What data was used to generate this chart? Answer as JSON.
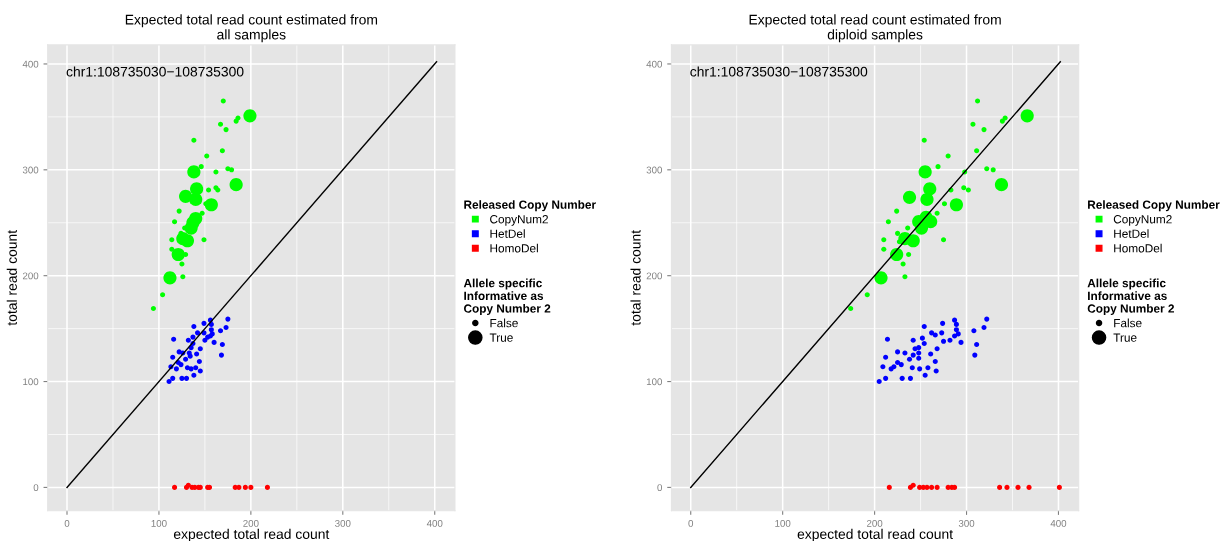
{
  "chart_data": [
    {
      "type": "bubble",
      "title": "Expected total read count estimated from\nall samples",
      "xlabel": "expected total read count",
      "ylabel": "total read count",
      "legend_title": [
        "Released Copy Number",
        "Allele specific\nInformative as\nCopy Number 2"
      ],
      "annotations": [
        "chr1:108735030−108735300"
      ],
      "xlim": [
        -21,
        422
      ],
      "ylim": [
        -22,
        418
      ],
      "xticks": [
        0,
        100,
        200,
        300,
        400
      ],
      "yticks": [
        0,
        100,
        200,
        300,
        400
      ],
      "grid": true,
      "legend": "right",
      "marker": "circle",
      "size_legend": [
        {
          "value": 0.15,
          "label": "False"
        },
        {
          "value": 1,
          "label": "True"
        }
      ],
      "series": [
        {
          "name": "CopyNum2",
          "color": "#00ff00",
          "x": [
            170,
            199,
            186,
            184,
            167,
            173,
            138,
            169,
            152,
            146,
            138,
            162,
            175,
            179,
            184,
            141,
            162,
            164,
            154,
            129,
            140,
            157,
            151,
            122,
            147,
            117,
            140,
            137,
            135,
            128,
            124,
            126,
            131,
            114,
            149,
            114,
            121,
            129,
            125,
            112,
            126,
            104,
            94
          ],
          "values": [
            365,
            351,
            349,
            346,
            343,
            338,
            328,
            318,
            313,
            303,
            298,
            298,
            301,
            300,
            286,
            282,
            283,
            281,
            281,
            275,
            272,
            267,
            268,
            261,
            259,
            251,
            254,
            250,
            245,
            245,
            240,
            235,
            233,
            234,
            234,
            225,
            220,
            220,
            211,
            198,
            199,
            182,
            169
          ],
          "sizes": [
            0.15,
            1,
            0.15,
            0.15,
            0.15,
            0.15,
            0.15,
            0.15,
            0.15,
            0.15,
            1,
            0.15,
            0.15,
            0.15,
            1,
            1,
            0.15,
            0.15,
            0.15,
            1,
            1,
            1,
            0.15,
            0.15,
            0.15,
            0.15,
            1,
            1,
            1,
            0.15,
            0.15,
            1,
            1,
            0.15,
            0.15,
            0.15,
            1,
            0.15,
            0.15,
            1,
            0.15,
            0.15,
            0.15
          ]
        },
        {
          "name": "HetDel",
          "color": "#0000ff",
          "x": [
            175,
            156,
            149,
            157,
            138,
            173,
            157,
            142,
            149,
            158,
            156,
            137,
            153,
            167,
            116,
            132,
            150,
            160,
            169,
            137,
            135,
            145,
            122,
            126,
            133,
            141,
            134,
            129,
            115,
            168,
            144,
            121,
            124,
            113,
            119,
            131,
            135,
            140,
            145,
            138,
            115,
            125,
            130,
            111
          ],
          "values": [
            159,
            158,
            155,
            154,
            152,
            151,
            149,
            146,
            146,
            145,
            143,
            142,
            142,
            148,
            140,
            139,
            139,
            137,
            135,
            136,
            132,
            131,
            128,
            127,
            127,
            126,
            124,
            121,
            123,
            125,
            119,
            118,
            116,
            114,
            112,
            113,
            112,
            113,
            110,
            106,
            103,
            103,
            103,
            100
          ],
          "sizes": [
            0.15,
            0.15,
            0.15,
            0.15,
            0.15,
            0.15,
            0.15,
            0.15,
            0.15,
            0.15,
            0.15,
            0.15,
            0.15,
            0.15,
            0.15,
            0.15,
            0.15,
            0.15,
            0.15,
            0.15,
            0.15,
            0.15,
            0.15,
            0.15,
            0.15,
            0.15,
            0.15,
            0.15,
            0.15,
            0.15,
            0.15,
            0.15,
            0.15,
            0.15,
            0.15,
            0.15,
            0.15,
            0.15,
            0.15,
            0.15,
            0.15,
            0.15,
            0.15,
            0.15
          ]
        },
        {
          "name": "HomoDel",
          "color": "#ff0000",
          "x": [
            117,
            130,
            132,
            136,
            139,
            143,
            145,
            153,
            155,
            183,
            187,
            194,
            200,
            218
          ],
          "values": [
            0,
            0,
            2,
            0,
            0,
            0,
            0,
            0,
            0,
            0,
            0,
            0,
            0,
            0
          ],
          "sizes": [
            0.15,
            0.15,
            0.15,
            0.15,
            0.15,
            0.15,
            0.15,
            0.15,
            0.15,
            0.15,
            0.15,
            0.15,
            0.15,
            0.15
          ]
        },
        {
          "type": "line",
          "marker": "none",
          "color": "#000000",
          "x": [
            0,
            402
          ],
          "values": [
            0,
            402
          ]
        }
      ]
    },
    {
      "type": "bubble",
      "title": "Expected total read count estimated from\ndiploid samples",
      "xlabel": "expected total read count",
      "ylabel": "total read count",
      "legend_title": [
        "Released Copy Number",
        "Allele specific\nInformative as\nCopy Number 2"
      ],
      "annotations": [
        "chr1:108735030−108735300"
      ],
      "xlim": [
        -21,
        422
      ],
      "ylim": [
        -22,
        418
      ],
      "xticks": [
        0,
        100,
        200,
        300,
        400
      ],
      "yticks": [
        0,
        100,
        200,
        300,
        400
      ],
      "grid": true,
      "legend": "right",
      "marker": "circle",
      "size_legend": [
        {
          "value": 0.15,
          "label": "False"
        },
        {
          "value": 1,
          "label": "True"
        }
      ],
      "series": [
        {
          "name": "CopyNum2",
          "color": "#00ff00",
          "x": [
            312,
            366,
            342,
            339,
            307,
            319,
            254,
            311,
            280,
            269,
            255,
            298,
            322,
            329,
            338,
            260,
            297,
            302,
            283,
            238,
            257,
            289,
            276,
            224,
            215,
            248,
            256,
            261,
            251,
            233,
            242,
            224,
            207,
            268,
            236,
            225,
            210,
            275,
            227,
            210,
            237,
            231,
            233,
            192,
            174
          ],
          "values": [
            365,
            351,
            349,
            346,
            343,
            338,
            328,
            318,
            313,
            303,
            298,
            298,
            301,
            300,
            286,
            282,
            283,
            281,
            281,
            274,
            272,
            267,
            268,
            261,
            251,
            251,
            255,
            251,
            245,
            235,
            233,
            220,
            198,
            259,
            245,
            240,
            234,
            234,
            232,
            225,
            220,
            211,
            199,
            182,
            169
          ],
          "sizes": [
            0.15,
            1,
            0.15,
            0.15,
            0.15,
            0.15,
            0.15,
            0.15,
            0.15,
            0.15,
            1,
            0.15,
            0.15,
            0.15,
            1,
            1,
            0.15,
            0.15,
            0.15,
            1,
            1,
            1,
            0.15,
            0.15,
            0.15,
            1,
            1,
            1,
            1,
            1,
            1,
            1,
            1,
            0.15,
            0.15,
            0.15,
            0.15,
            0.15,
            0.15,
            0.15,
            0.15,
            0.15,
            0.15,
            0.15,
            0.15
          ]
        },
        {
          "name": "HetDel",
          "color": "#0000ff",
          "x": [
            322,
            287,
            274,
            289,
            254,
            319,
            289,
            262,
            273,
            291,
            266,
            308,
            287,
            282,
            275,
            294,
            214,
            242,
            252,
            254,
            311,
            248,
            268,
            244,
            225,
            233,
            248,
            261,
            242,
            309,
            238,
            212,
            248,
            266,
            225,
            229,
            209,
            221,
            218,
            241,
            249,
            258,
            267,
            255,
            212,
            230,
            239,
            205
          ],
          "values": [
            159,
            158,
            155,
            154,
            152,
            151,
            149,
            146,
            146,
            145,
            144,
            148,
            143,
            139,
            138,
            137,
            140,
            139,
            141,
            136,
            135,
            132,
            131,
            131,
            128,
            127,
            127,
            126,
            125,
            125,
            121,
            123,
            122,
            119,
            118,
            116,
            114,
            114,
            112,
            113,
            112,
            113,
            110,
            106,
            103,
            103,
            103,
            100
          ],
          "sizes": [
            0.15,
            0.15,
            0.15,
            0.15,
            0.15,
            0.15,
            0.15,
            0.15,
            0.15,
            0.15,
            0.15,
            0.15,
            0.15,
            0.15,
            0.15,
            0.15,
            0.15,
            0.15,
            0.15,
            0.15,
            0.15,
            0.15,
            0.15,
            0.15,
            0.15,
            0.15,
            0.15,
            0.15,
            0.15,
            0.15,
            0.15,
            0.15,
            0.15,
            0.15,
            0.15,
            0.15,
            0.15,
            0.15,
            0.15,
            0.15,
            0.15,
            0.15,
            0.15,
            0.15,
            0.15,
            0.15,
            0.15,
            0.15
          ]
        },
        {
          "name": "HomoDel",
          "color": "#ff0000",
          "x": [
            216,
            239,
            242,
            249,
            253,
            257,
            262,
            268,
            280,
            284,
            287,
            336,
            344,
            356,
            368,
            401
          ],
          "values": [
            0,
            0,
            2,
            0,
            0,
            0,
            0,
            0,
            0,
            0,
            0,
            0,
            0,
            0,
            0,
            0
          ],
          "sizes": [
            0.15,
            0.15,
            0.15,
            0.15,
            0.15,
            0.15,
            0.15,
            0.15,
            0.15,
            0.15,
            0.15,
            0.15,
            0.15,
            0.15,
            0.15,
            0.15
          ]
        },
        {
          "type": "line",
          "marker": "none",
          "color": "#000000",
          "x": [
            0,
            402
          ],
          "values": [
            0,
            402
          ]
        }
      ]
    }
  ]
}
